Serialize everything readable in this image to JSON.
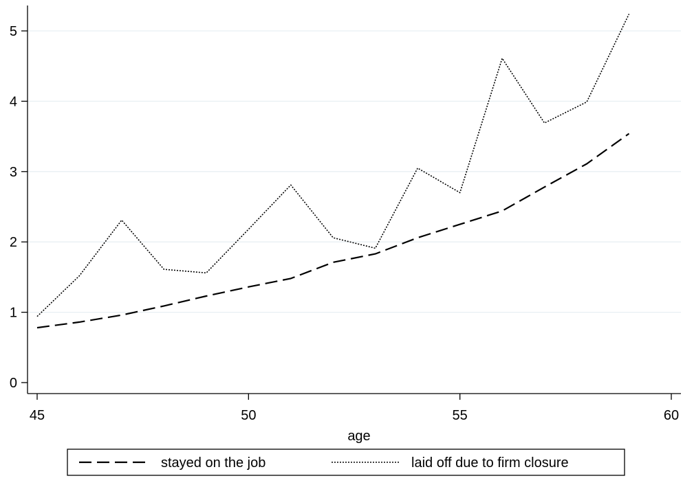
{
  "chart_data": {
    "type": "line",
    "title": "",
    "xlabel": "age",
    "ylabel": "",
    "xlim": [
      45,
      60
    ],
    "ylim": [
      0,
      5.3
    ],
    "xticks": [
      45,
      50,
      55,
      60
    ],
    "yticks": [
      0,
      1,
      2,
      3,
      4,
      5
    ],
    "grid": "horizontal",
    "legend_position": "bottom",
    "x": [
      45,
      46,
      47,
      48,
      49,
      50,
      51,
      52,
      53,
      54,
      55,
      56,
      57,
      58,
      59
    ],
    "series": [
      {
        "name": "stayed on the job",
        "style": "dashed",
        "color": "#000000",
        "values": [
          0.78,
          0.86,
          0.96,
          1.09,
          1.23,
          1.36,
          1.48,
          1.71,
          1.83,
          2.06,
          2.25,
          2.44,
          2.78,
          3.11,
          3.54
        ]
      },
      {
        "name": "laid off due to firm closure",
        "style": "dotted",
        "color": "#000000",
        "values": [
          0.94,
          1.52,
          2.31,
          1.61,
          1.56,
          2.18,
          2.81,
          2.06,
          1.91,
          3.05,
          2.7,
          4.61,
          3.69,
          3.99,
          5.24
        ]
      }
    ]
  }
}
